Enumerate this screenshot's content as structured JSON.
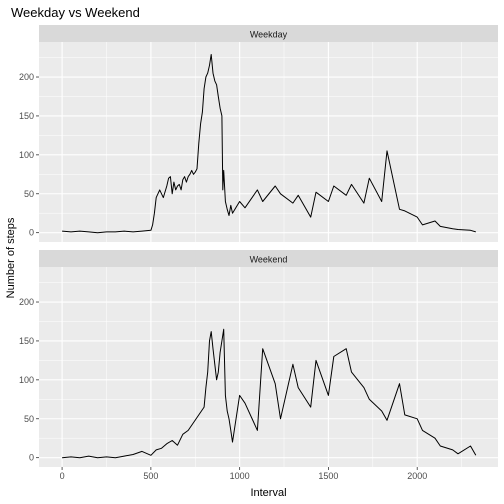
{
  "chart_data": {
    "type": "line",
    "title": "Weekday vs Weekend",
    "xlabel": "Interval",
    "ylabel": "Number of steps",
    "xlim": [
      -130,
      2455
    ],
    "ylim": [
      -12,
      245
    ],
    "x_ticks": [
      0,
      500,
      1000,
      1500,
      2000
    ],
    "y_ticks": [
      0,
      50,
      100,
      150,
      200
    ],
    "grid": true,
    "colors": {
      "panel": "#ebebeb",
      "strip": "#d9d9d9",
      "line": "#000000",
      "grid": "#ffffff"
    },
    "panels": [
      {
        "label": "Weekday",
        "series": [
          {
            "x": [
              0,
              50,
              100,
              150,
              200,
              250,
              300,
              350,
              400,
              450,
              500,
              510,
              520,
              530,
              550,
              570,
              590,
              600,
              610,
              620,
              630,
              640,
              650,
              660,
              670,
              680,
              690,
              700,
              710,
              720,
              730,
              740,
              750,
              760,
              770,
              780,
              790,
              800,
              810,
              820,
              830,
              840,
              850,
              855,
              860,
              870,
              880,
              890,
              900,
              905,
              910,
              920,
              930,
              940,
              950,
              960,
              1000,
              1030,
              1100,
              1130,
              1200,
              1230,
              1300,
              1330,
              1400,
              1430,
              1500,
              1530,
              1600,
              1630,
              1700,
              1730,
              1800,
              1830,
              1900,
              1930,
              2000,
              2030,
              2100,
              2130,
              2200,
              2230,
              2300,
              2330
            ],
            "y": [
              2,
              1,
              2,
              1,
              0,
              1,
              1,
              2,
              1,
              2,
              3,
              10,
              25,
              45,
              55,
              45,
              60,
              70,
              72,
              50,
              65,
              55,
              60,
              62,
              55,
              68,
              72,
              65,
              72,
              75,
              80,
              75,
              78,
              82,
              115,
              140,
              155,
              185,
              200,
              205,
              215,
              229,
              205,
              200,
              195,
              190,
              175,
              160,
              150,
              55,
              80,
              40,
              30,
              22,
              35,
              25,
              40,
              32,
              55,
              40,
              60,
              50,
              38,
              48,
              20,
              52,
              40,
              60,
              48,
              62,
              38,
              70,
              40,
              105,
              30,
              28,
              20,
              10,
              15,
              8,
              5,
              4,
              3,
              1
            ]
          }
        ]
      },
      {
        "label": "Weekend",
        "series": [
          {
            "x": [
              0,
              50,
              100,
              150,
              200,
              250,
              300,
              350,
              400,
              450,
              500,
              530,
              560,
              590,
              620,
              650,
              680,
              710,
              740,
              770,
              800,
              810,
              820,
              830,
              840,
              850,
              860,
              870,
              880,
              890,
              900,
              910,
              920,
              930,
              940,
              950,
              960,
              1000,
              1030,
              1100,
              1130,
              1200,
              1230,
              1300,
              1330,
              1400,
              1430,
              1500,
              1530,
              1600,
              1630,
              1700,
              1730,
              1800,
              1830,
              1900,
              1930,
              2000,
              2030,
              2100,
              2130,
              2200,
              2230,
              2300,
              2330
            ],
            "y": [
              0,
              1,
              0,
              2,
              0,
              1,
              0,
              2,
              4,
              8,
              3,
              10,
              12,
              18,
              22,
              16,
              30,
              35,
              45,
              55,
              65,
              90,
              110,
              150,
              162,
              140,
              120,
              100,
              110,
              135,
              150,
              165,
              80,
              60,
              50,
              35,
              20,
              80,
              70,
              35,
              140,
              95,
              50,
              120,
              90,
              65,
              125,
              80,
              130,
              140,
              110,
              90,
              75,
              60,
              48,
              95,
              55,
              50,
              35,
              25,
              15,
              10,
              5,
              15,
              3
            ]
          }
        ]
      }
    ]
  }
}
